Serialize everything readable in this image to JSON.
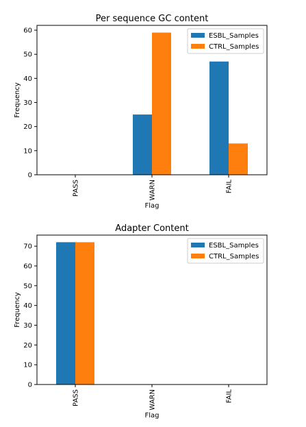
{
  "chart_data": [
    {
      "type": "bar",
      "title": "Per sequence GC content",
      "xlabel": "Flag",
      "ylabel": "Frequency",
      "categories": [
        "PASS",
        "WARN",
        "FAIL"
      ],
      "ylim": [
        0,
        62
      ],
      "yticks": [
        0,
        10,
        20,
        30,
        40,
        50,
        60
      ],
      "legend": "top-right",
      "series": [
        {
          "name": "ESBL_Samples",
          "color": "#1f77b4",
          "values": [
            0,
            25,
            47
          ]
        },
        {
          "name": "CTRL_Samples",
          "color": "#ff7f0e",
          "values": [
            0,
            59,
            13
          ]
        }
      ]
    },
    {
      "type": "bar",
      "title": "Adapter Content",
      "xlabel": "Flag",
      "ylabel": "Frequency",
      "categories": [
        "PASS",
        "WARN",
        "FAIL"
      ],
      "ylim": [
        0,
        75.6
      ],
      "yticks": [
        0,
        10,
        20,
        30,
        40,
        50,
        60,
        70
      ],
      "legend": "top-right",
      "series": [
        {
          "name": "ESBL_Samples",
          "color": "#1f77b4",
          "values": [
            72,
            0,
            0
          ]
        },
        {
          "name": "CTRL_Samples",
          "color": "#ff7f0e",
          "values": [
            72,
            0,
            0
          ]
        }
      ]
    }
  ]
}
